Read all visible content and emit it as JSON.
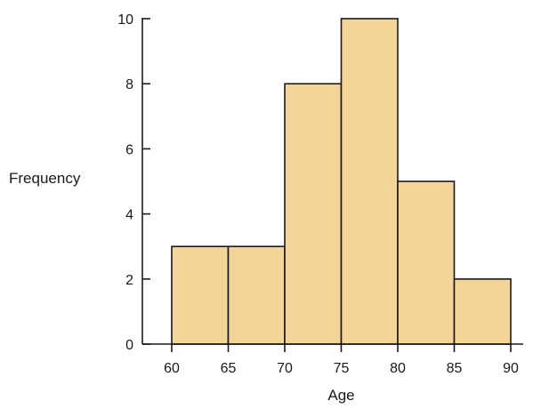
{
  "chart_data": {
    "type": "bar",
    "subtype": "histogram",
    "bins": [
      {
        "start": 60,
        "end": 65,
        "value": 3
      },
      {
        "start": 65,
        "end": 70,
        "value": 3
      },
      {
        "start": 70,
        "end": 75,
        "value": 8
      },
      {
        "start": 75,
        "end": 80,
        "value": 10
      },
      {
        "start": 80,
        "end": 85,
        "value": 5
      },
      {
        "start": 85,
        "end": 90,
        "value": 2
      }
    ],
    "x_ticks": [
      "60",
      "65",
      "70",
      "75",
      "80",
      "85",
      "90"
    ],
    "y_ticks": [
      "0",
      "2",
      "4",
      "6",
      "8",
      "10"
    ],
    "xlabel": "Age",
    "ylabel": "Frequency",
    "xlim": [
      55,
      95
    ],
    "ylim": [
      0,
      10
    ],
    "grid": false,
    "legend": "none",
    "colors": {
      "bar_fill": "#f3d499",
      "bar_stroke": "#1a1a1a",
      "axis": "#1a1a1a"
    }
  }
}
